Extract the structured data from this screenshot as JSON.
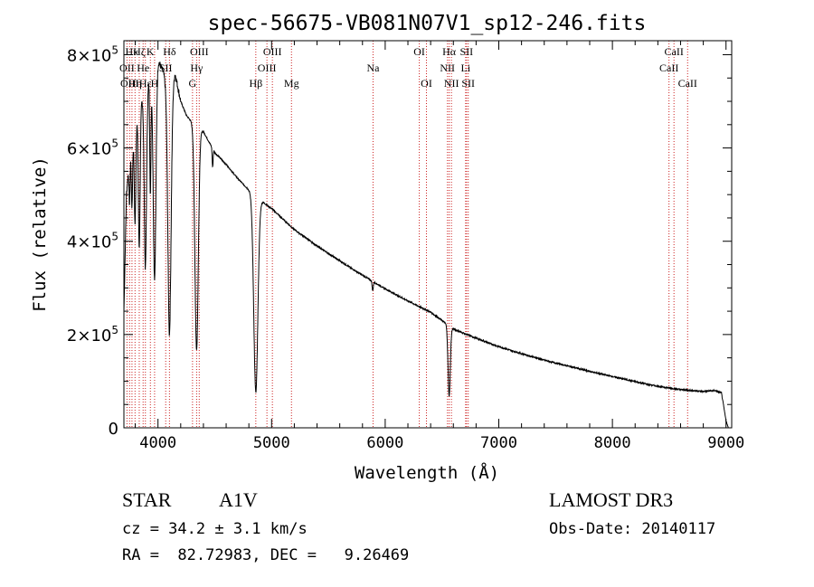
{
  "chart_data": {
    "type": "line",
    "title": "spec-56675-VB081N07V1_sp12-246.fits",
    "xlabel": "Wavelength (Å)",
    "ylabel": "Flux (relative)",
    "xlim": [
      3700,
      9050
    ],
    "ylim": [
      0,
      830000
    ],
    "x_ticks": [
      4000,
      5000,
      6000,
      7000,
      8000,
      9000
    ],
    "x_tick_labels": [
      "4000",
      "5000",
      "6000",
      "7000",
      "8000",
      "9000"
    ],
    "y_ticks": [
      0,
      200000,
      400000,
      600000,
      800000
    ],
    "y_tick_labels": [
      {
        "mant": "0",
        "exp": ""
      },
      {
        "mant": "2×10",
        "exp": "5"
      },
      {
        "mant": "4×10",
        "exp": "5"
      },
      {
        "mant": "6×10",
        "exp": "5"
      },
      {
        "mant": "8×10",
        "exp": "5"
      }
    ],
    "continuum": [
      [
        3700,
        250000
      ],
      [
        3722,
        500000
      ],
      [
        3760,
        610000
      ],
      [
        3800,
        660000
      ],
      [
        3850,
        700000
      ],
      [
        3900,
        730000
      ],
      [
        3950,
        760000
      ],
      [
        4000,
        790000
      ],
      [
        4050,
        760000
      ],
      [
        4100,
        700000
      ],
      [
        4150,
        760000
      ],
      [
        4200,
        700000
      ],
      [
        4250,
        670000
      ],
      [
        4300,
        655000
      ],
      [
        4400,
        635000
      ],
      [
        4500,
        590000
      ],
      [
        4600,
        565000
      ],
      [
        4700,
        535000
      ],
      [
        4800,
        510000
      ],
      [
        4900,
        488000
      ],
      [
        5000,
        470000
      ],
      [
        5200,
        425000
      ],
      [
        5400,
        390000
      ],
      [
        5600,
        358000
      ],
      [
        5800,
        327000
      ],
      [
        6000,
        298000
      ],
      [
        6200,
        272000
      ],
      [
        6400,
        248000
      ],
      [
        6600,
        212000
      ],
      [
        6800,
        192000
      ],
      [
        7000,
        174000
      ],
      [
        7200,
        159000
      ],
      [
        7400,
        145000
      ],
      [
        7600,
        133000
      ],
      [
        7800,
        121000
      ],
      [
        8000,
        110000
      ],
      [
        8200,
        99000
      ],
      [
        8400,
        89000
      ],
      [
        8600,
        82000
      ],
      [
        8800,
        78000
      ],
      [
        8900,
        80000
      ],
      [
        8960,
        75000
      ],
      [
        9000,
        15000
      ],
      [
        9020,
        0
      ]
    ],
    "absorption_lines": [
      {
        "center": 3750,
        "depth": 100000,
        "width": 5
      },
      {
        "center": 3771,
        "depth": 150000,
        "width": 6
      },
      {
        "center": 3798,
        "depth": 220000,
        "width": 7
      },
      {
        "center": 3835,
        "depth": 300000,
        "width": 8
      },
      {
        "center": 3889,
        "depth": 380000,
        "width": 10
      },
      {
        "center": 3933,
        "depth": 250000,
        "width": 5
      },
      {
        "center": 3970,
        "depth": 450000,
        "width": 12
      },
      {
        "center": 4101,
        "depth": 500000,
        "width": 14
      },
      {
        "center": 4340,
        "depth": 480000,
        "width": 15
      },
      {
        "center": 4481,
        "depth": 40000,
        "width": 4
      },
      {
        "center": 4861,
        "depth": 420000,
        "width": 18
      },
      {
        "center": 5890,
        "depth": 20000,
        "width": 5
      },
      {
        "center": 6563,
        "depth": 150000,
        "width": 10
      }
    ],
    "line_markers": [
      {
        "wavelength": 3727,
        "label": "OII",
        "row": 1
      },
      {
        "wavelength": 3750,
        "label": "OIII",
        "row": 2
      },
      {
        "wavelength": 3771,
        "label": "Hκ",
        "row": 0
      },
      {
        "wavelength": 3798,
        "label": "Hη",
        "row": 2
      },
      {
        "wavelength": 3835,
        "label": "Hζ",
        "row": 0
      },
      {
        "wavelength": 3869,
        "label": "He",
        "row": 1
      },
      {
        "wavelength": 3889,
        "label": "Hε",
        "row": 2
      },
      {
        "wavelength": 3933,
        "label": "K",
        "row": 0
      },
      {
        "wavelength": 3970,
        "label": "H",
        "row": 2
      },
      {
        "wavelength": 4068,
        "label": "SII",
        "row": 1
      },
      {
        "wavelength": 4101,
        "label": "Hδ",
        "row": 0
      },
      {
        "wavelength": 4304,
        "label": "G",
        "row": 2
      },
      {
        "wavelength": 4340,
        "label": "Hγ",
        "row": 1
      },
      {
        "wavelength": 4363,
        "label": "OIII",
        "row": 0
      },
      {
        "wavelength": 4861,
        "label": "Hβ",
        "row": 2
      },
      {
        "wavelength": 4959,
        "label": "OIII",
        "row": 1
      },
      {
        "wavelength": 5007,
        "label": "OIII",
        "row": 0
      },
      {
        "wavelength": 5175,
        "label": "Mg",
        "row": 2
      },
      {
        "wavelength": 5893,
        "label": "Na",
        "row": 1
      },
      {
        "wavelength": 6300,
        "label": "OI",
        "row": 0
      },
      {
        "wavelength": 6363,
        "label": "OI",
        "row": 2
      },
      {
        "wavelength": 6548,
        "label": "NII",
        "row": 1
      },
      {
        "wavelength": 6563,
        "label": "Hα",
        "row": 0
      },
      {
        "wavelength": 6583,
        "label": "NII",
        "row": 2
      },
      {
        "wavelength": 6708,
        "label": "Li",
        "row": 1
      },
      {
        "wavelength": 6716,
        "label": "SII",
        "row": 0
      },
      {
        "wavelength": 6731,
        "label": "SII",
        "row": 2
      },
      {
        "wavelength": 8498,
        "label": "CaII",
        "row": 1
      },
      {
        "wavelength": 8542,
        "label": "CaII",
        "row": 0
      },
      {
        "wavelength": 8662,
        "label": "CaII",
        "row": 2
      }
    ],
    "grid": false,
    "marker_line_color": "#cc2222",
    "spectrum_color": "#000000"
  },
  "info": {
    "class_label": "STAR",
    "subclass": "A1V",
    "survey": "LAMOST DR3",
    "cz_text": "cz = 34.2 ± 3.1 km/s",
    "obs_date_text": "Obs-Date: 20140117",
    "radec_text": "RA =  82.72983, DEC =   9.26469"
  }
}
